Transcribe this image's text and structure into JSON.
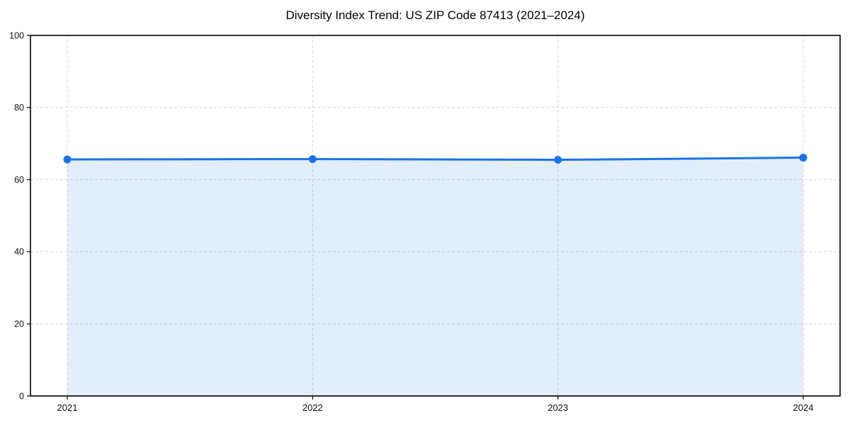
{
  "page": {
    "background": "#ffffff"
  },
  "chart_data": {
    "type": "line",
    "title": "Diversity Index Trend: US ZIP Code 87413 (2021–2024)",
    "categories": [
      "2021",
      "2022",
      "2023",
      "2024"
    ],
    "series": [
      {
        "name": "Diversity Index",
        "values": [
          65.6,
          65.7,
          65.5,
          66.1
        ],
        "marker": "circle",
        "area_fill": true
      }
    ],
    "xlabel": "",
    "ylabel": "",
    "ylim": [
      0,
      100
    ],
    "yticks": [
      0,
      20,
      40,
      60,
      80,
      100
    ],
    "grid": true,
    "grid_style": "dashed",
    "legend": "none",
    "colors": {
      "line": "#1a73e8",
      "marker": "#1a73e8",
      "area_fill": "#1a73e8",
      "area_fill_opacity": 0.12,
      "grid": "#d8d8d8",
      "axis": "#000000",
      "text": "#000000",
      "background": "#ffffff"
    }
  }
}
